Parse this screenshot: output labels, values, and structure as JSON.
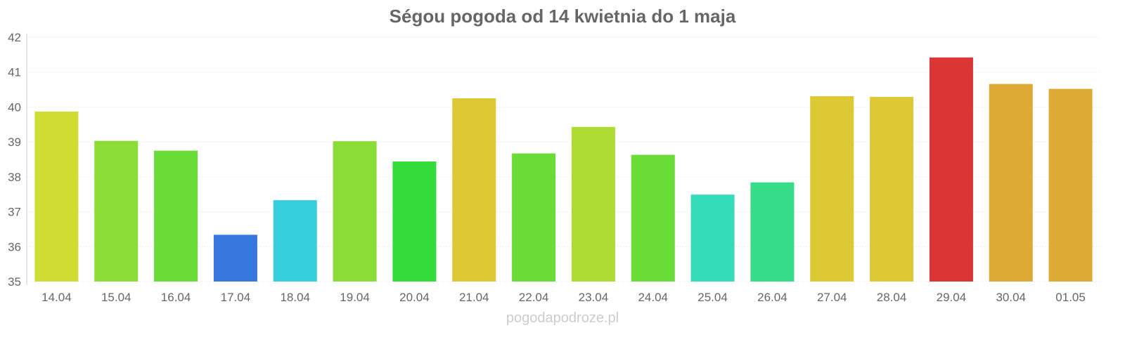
{
  "chart_data": {
    "type": "bar",
    "title": "Ségou pogoda od 14 kwietnia do 1 maja",
    "xlabel": "",
    "ylabel": "",
    "ylim": [
      35,
      42
    ],
    "yticks": [
      "35",
      "36",
      "37",
      "38",
      "39",
      "40",
      "41",
      "42"
    ],
    "categories": [
      "14.04",
      "15.04",
      "16.04",
      "17.04",
      "18.04",
      "19.04",
      "20.04",
      "21.04",
      "22.04",
      "23.04",
      "24.04",
      "25.04",
      "26.04",
      "27.04",
      "28.04",
      "29.04",
      "30.04",
      "01.05"
    ],
    "values": [
      39.87,
      39.03,
      38.75,
      36.34,
      37.33,
      39.02,
      38.44,
      40.25,
      38.67,
      39.43,
      38.63,
      37.49,
      37.84,
      40.31,
      40.29,
      41.42,
      40.66,
      40.52
    ],
    "colors": [
      "#cfdc33",
      "#8bdc37",
      "#6adc37",
      "#3577dc",
      "#35cedc",
      "#8bdc37",
      "#33dc3a",
      "#dcc933",
      "#6adc37",
      "#aedc35",
      "#6adc37",
      "#35dcb9",
      "#37dc89",
      "#dcc933",
      "#dcc933",
      "#dc3535",
      "#dcaa35",
      "#dcaa35"
    ],
    "grid": true
  },
  "watermark": "pogodapodroze.pl"
}
